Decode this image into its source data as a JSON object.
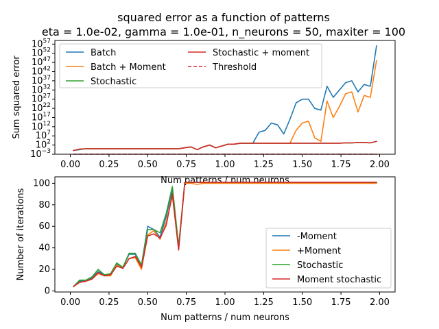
{
  "figure": {
    "title_line1": "squared error as a function of patterns",
    "title_line2": "eta = 1.0e-02, gamma = 1.0e-01, n_neurons = 50, maxiter = 100"
  },
  "chart_data": [
    {
      "type": "line",
      "xlabel": "Num patterns / num neurons",
      "ylabel": "Sum squared error",
      "yscale": "log",
      "xlim": [
        -0.1,
        2.1
      ],
      "ylim_exp": [
        -3,
        59
      ],
      "x_ticks": [
        "0.00",
        "0.25",
        "0.50",
        "0.75",
        "1.00",
        "1.25",
        "1.50",
        "1.75",
        "2.00"
      ],
      "y_ticks": [
        {
          "base": "10",
          "exp": "−3",
          "value_exp": -3
        },
        {
          "base": "10",
          "exp": "2",
          "value_exp": 2
        },
        {
          "base": "10",
          "exp": "7",
          "value_exp": 7
        },
        {
          "base": "10",
          "exp": "12",
          "value_exp": 12
        },
        {
          "base": "10",
          "exp": "17",
          "value_exp": 17
        },
        {
          "base": "10",
          "exp": "22",
          "value_exp": 22
        },
        {
          "base": "10",
          "exp": "27",
          "value_exp": 27
        },
        {
          "base": "10",
          "exp": "32",
          "value_exp": 32
        },
        {
          "base": "10",
          "exp": "37",
          "value_exp": 37
        },
        {
          "base": "10",
          "exp": "42",
          "value_exp": 42
        },
        {
          "base": "10",
          "exp": "47",
          "value_exp": 47
        },
        {
          "base": "10",
          "exp": "52",
          "value_exp": 52
        },
        {
          "base": "10",
          "exp": "57",
          "value_exp": 57
        }
      ],
      "legend_position": "upper-left",
      "x": [
        0.02,
        0.06,
        0.1,
        0.14,
        0.18,
        0.22,
        0.26,
        0.3,
        0.34,
        0.38,
        0.42,
        0.46,
        0.5,
        0.54,
        0.58,
        0.62,
        0.66,
        0.7,
        0.74,
        0.78,
        0.82,
        0.86,
        0.9,
        0.94,
        0.98,
        1.02,
        1.06,
        1.1,
        1.14,
        1.18,
        1.22,
        1.26,
        1.3,
        1.34,
        1.38,
        1.42,
        1.46,
        1.5,
        1.54,
        1.58,
        1.62,
        1.66,
        1.7,
        1.74,
        1.78,
        1.82,
        1.86,
        1.9,
        1.94,
        1.98
      ],
      "series": [
        {
          "name": "Batch",
          "color": "#1f77b4",
          "dash": "",
          "log10_y": [
            -1,
            -0.5,
            0,
            0,
            0,
            0,
            0,
            0,
            0,
            0,
            0,
            0,
            0,
            0,
            0,
            0,
            0,
            0,
            0.5,
            1,
            -0.5,
            1,
            2,
            0.5,
            1.5,
            2.5,
            2.5,
            3,
            3,
            3,
            9,
            10,
            14,
            13,
            8,
            16,
            25,
            27,
            27,
            22,
            21,
            34,
            28,
            32,
            36,
            37,
            31,
            35,
            34,
            56
          ]
        },
        {
          "name": "Batch + Moment",
          "color": "#ff7f0e",
          "dash": "",
          "log10_y": [
            -1,
            -0.2,
            0,
            0,
            0,
            0,
            0,
            0,
            0,
            0,
            0,
            0,
            0,
            0,
            0,
            0,
            0,
            0,
            0.5,
            1,
            -0.5,
            1,
            2,
            0.5,
            1.5,
            2.5,
            2.5,
            3,
            3,
            3,
            3,
            3,
            3,
            3,
            3,
            3,
            10,
            14,
            15,
            6,
            4,
            26,
            17,
            23,
            30,
            31,
            20,
            29,
            28,
            48
          ]
        },
        {
          "name": "Stochastic",
          "color": "#2ca02c",
          "dash": "",
          "log10_y": [
            -1,
            -0.2,
            0,
            0,
            0,
            0,
            0,
            0,
            0,
            0,
            0,
            0,
            0,
            0,
            0,
            0,
            0,
            0,
            0.5,
            1,
            -0.5,
            1,
            2,
            0.5,
            1.5,
            2.5,
            2.5,
            3,
            3,
            3,
            3,
            3,
            3,
            3,
            3,
            3,
            3,
            3,
            3,
            3,
            3,
            3,
            3,
            3,
            3.2,
            3.2,
            3.4,
            3.4,
            3.2,
            4
          ]
        },
        {
          "name": "Stochastic + moment",
          "color": "#d62728",
          "dash": "",
          "log10_y": [
            -1,
            -0.2,
            0,
            0,
            0,
            0,
            0,
            0,
            0,
            0,
            0,
            0,
            0,
            0,
            0,
            0,
            0,
            0,
            0.5,
            1,
            -0.5,
            1,
            2,
            0.5,
            1.5,
            2.5,
            2.5,
            3,
            3,
            3,
            3,
            3,
            3,
            3,
            3,
            3,
            3,
            3,
            3,
            3,
            3,
            3,
            3,
            3,
            3.2,
            3.2,
            3.4,
            3.4,
            3.2,
            4
          ]
        },
        {
          "name": "Threshold",
          "color": "#d62728",
          "dash": "5,3",
          "log10_y": [
            -3,
            -3,
            -3,
            -3,
            -3,
            -3,
            -3,
            -3,
            -3,
            -3,
            -3,
            -3,
            -3,
            -3,
            -3,
            -3,
            -3,
            -3,
            -3,
            -3,
            -3,
            -3,
            -3,
            -3,
            -3,
            -3,
            -3,
            -3,
            -3,
            -3,
            -3,
            -3,
            -3,
            -3,
            -3,
            -3,
            -3,
            -3,
            -3,
            -3,
            -3,
            -3,
            -3,
            -3,
            -3,
            -3,
            -3,
            -3,
            -3,
            -3
          ]
        }
      ]
    },
    {
      "type": "line",
      "xlabel": "Num patterns / num neurons",
      "ylabel": "Number of iterations",
      "xlim": [
        -0.1,
        2.1
      ],
      "ylim": [
        -1,
        106
      ],
      "x_ticks": [
        "0.00",
        "0.25",
        "0.50",
        "0.75",
        "1.00",
        "1.25",
        "1.50",
        "1.75",
        "2.00"
      ],
      "y_ticks": [
        "0",
        "20",
        "40",
        "60",
        "80",
        "100"
      ],
      "legend_position": "lower-right",
      "x": [
        0.02,
        0.06,
        0.1,
        0.14,
        0.18,
        0.22,
        0.26,
        0.3,
        0.34,
        0.38,
        0.42,
        0.46,
        0.5,
        0.54,
        0.58,
        0.62,
        0.66,
        0.7,
        0.74,
        0.78,
        0.82,
        0.86,
        0.9,
        0.94,
        0.98,
        1.02,
        1.06,
        1.1,
        1.14,
        1.18,
        1.22,
        1.26,
        1.3,
        1.34,
        1.38,
        1.42,
        1.46,
        1.5,
        1.54,
        1.58,
        1.62,
        1.66,
        1.7,
        1.74,
        1.78,
        1.82,
        1.86,
        1.9,
        1.94,
        1.98
      ],
      "series": [
        {
          "name": "-Moment",
          "color": "#1f77b4",
          "values": [
            4,
            9,
            9,
            12,
            18,
            15,
            15,
            25,
            22,
            34,
            34,
            24,
            60,
            57,
            50,
            69,
            94,
            39,
            101,
            101,
            101,
            101,
            101,
            101,
            101,
            101,
            101,
            101,
            101,
            101,
            101,
            101,
            101,
            101,
            101,
            101,
            101,
            101,
            101,
            101,
            101,
            101,
            101,
            101,
            101,
            101,
            101,
            101,
            101,
            101
          ]
        },
        {
          "name": "+Moment",
          "color": "#ff7f0e",
          "values": [
            4,
            8,
            9,
            11,
            16,
            14,
            14,
            24,
            21,
            30,
            31,
            20,
            52,
            56,
            48,
            64,
            88,
            40,
            100,
            100,
            99,
            100,
            100,
            100,
            100,
            100,
            100,
            100,
            100,
            100,
            100,
            100,
            100,
            100,
            100,
            100,
            100,
            100,
            100,
            100,
            100,
            100,
            100,
            100,
            100,
            100,
            100,
            100,
            100,
            100
          ]
        },
        {
          "name": "Stochastic",
          "color": "#2ca02c",
          "values": [
            4,
            10,
            10,
            13,
            20,
            15,
            16,
            26,
            22,
            35,
            35,
            24,
            57,
            57,
            54,
            72,
            97,
            42,
            101,
            101,
            101,
            101,
            101,
            101,
            101,
            101,
            101,
            101,
            101,
            101,
            101,
            101,
            101,
            101,
            101,
            101,
            101,
            101,
            101,
            101,
            101,
            101,
            101,
            101,
            101,
            101,
            101,
            101,
            101,
            101
          ]
        },
        {
          "name": "Moment stochastic",
          "color": "#d62728",
          "values": [
            4,
            8,
            9,
            11,
            17,
            14,
            15,
            23,
            21,
            30,
            32,
            22,
            51,
            53,
            49,
            61,
            90,
            38,
            101,
            101,
            101,
            101,
            101,
            101,
            101,
            101,
            101,
            101,
            101,
            101,
            101,
            101,
            101,
            101,
            101,
            101,
            101,
            101,
            101,
            101,
            101,
            101,
            101,
            101,
            101,
            101,
            101,
            101,
            101,
            101
          ]
        }
      ]
    }
  ]
}
